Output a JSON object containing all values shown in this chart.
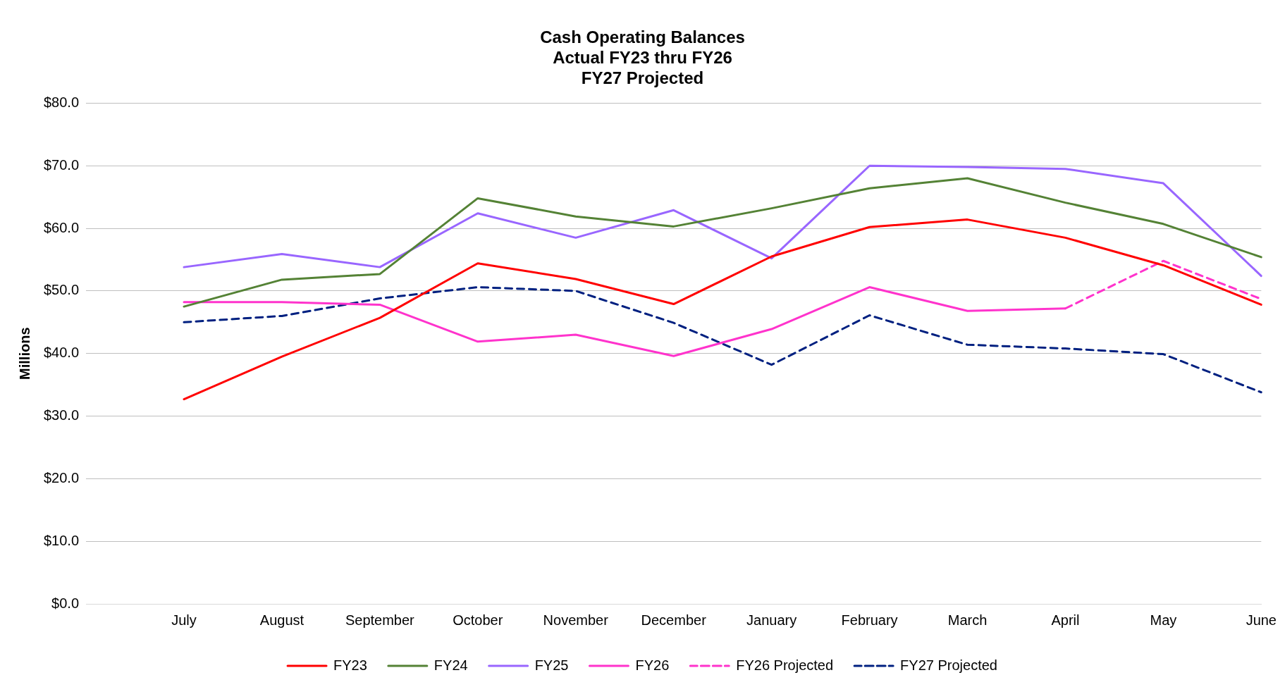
{
  "chart_data": {
    "type": "line",
    "title": "Cash Operating Balances\nActual FY23 thru FY26\nFY27 Projected",
    "ylabel": "Millions",
    "categories": [
      null,
      "July",
      "August",
      "September",
      "October",
      "November",
      "December",
      "January",
      "February",
      "March",
      "April",
      "May",
      "June"
    ],
    "series": [
      {
        "name": "FY23",
        "color": "#ff0000",
        "line_style": "solid",
        "values": [
          null,
          32.7,
          39.5,
          45.7,
          54.4,
          51.9,
          47.9,
          55.5,
          60.2,
          61.4,
          58.5,
          54.1,
          47.8
        ]
      },
      {
        "name": "FY24",
        "color": "#548235",
        "line_style": "solid",
        "values": [
          null,
          47.5,
          51.8,
          52.7,
          64.8,
          61.9,
          60.3,
          63.2,
          66.4,
          68.0,
          64.1,
          60.7,
          55.4
        ]
      },
      {
        "name": "FY25",
        "color": "#9966ff",
        "line_style": "solid",
        "values": [
          null,
          53.8,
          55.9,
          53.8,
          62.4,
          58.5,
          62.9,
          55.2,
          70.0,
          69.8,
          69.5,
          67.2,
          52.4
        ]
      },
      {
        "name": "FY26",
        "color": "#ff33cc",
        "line_style": "solid",
        "values": [
          null,
          48.2,
          48.2,
          47.8,
          41.9,
          43.0,
          39.6,
          43.9,
          50.6,
          46.8,
          47.2,
          null,
          null
        ]
      },
      {
        "name": "FY26 Projected",
        "color": "#ff33cc",
        "line_style": "dashed",
        "values": [
          null,
          null,
          null,
          null,
          null,
          null,
          null,
          null,
          null,
          null,
          47.2,
          54.8,
          48.7
        ]
      },
      {
        "name": "FY27 Projected",
        "color": "#002080",
        "line_style": "dashed",
        "values": [
          null,
          45.0,
          46.0,
          48.8,
          50.6,
          50.0,
          44.9,
          38.2,
          46.1,
          41.4,
          40.8,
          39.9,
          33.8
        ]
      }
    ],
    "ylim": [
      0,
      80
    ],
    "yticks": [
      {
        "value": 0,
        "label": "$0.0"
      },
      {
        "value": 10,
        "label": "$10.0"
      },
      {
        "value": 20,
        "label": "$20.0"
      },
      {
        "value": 30,
        "label": "$30.0"
      },
      {
        "value": 40,
        "label": "$40.0"
      },
      {
        "value": 50,
        "label": "$50.0"
      },
      {
        "value": 60,
        "label": "$60.0"
      },
      {
        "value": 70,
        "label": "$70.0"
      },
      {
        "value": 80,
        "label": "$80.0"
      }
    ],
    "grid": "y",
    "legend": "bottom",
    "marker": "none"
  }
}
